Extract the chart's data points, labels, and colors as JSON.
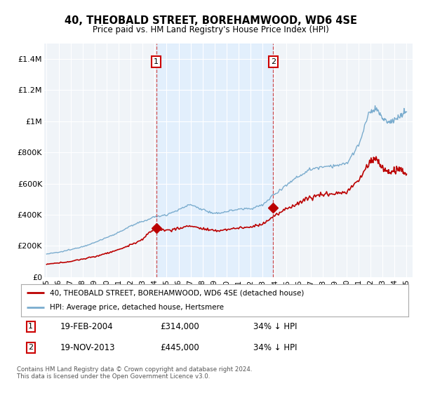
{
  "title": "40, THEOBALD STREET, BOREHAMWOOD, WD6 4SE",
  "subtitle": "Price paid vs. HM Land Registry's House Price Index (HPI)",
  "xlim_start": 1994.8,
  "xlim_end": 2025.5,
  "ylim_bottom": 0,
  "ylim_top": 1500000,
  "yticks": [
    0,
    200000,
    400000,
    600000,
    800000,
    1000000,
    1200000,
    1400000
  ],
  "ytick_labels": [
    "£0",
    "£200K",
    "£400K",
    "£600K",
    "£800K",
    "£1M",
    "£1.2M",
    "£1.4M"
  ],
  "sale1_date_num": 2004.13,
  "sale1_price": 314000,
  "sale1_label": "1",
  "sale2_date_num": 2013.89,
  "sale2_price": 445000,
  "sale2_label": "2",
  "red_line_color": "#bb0000",
  "blue_line_color": "#7aacce",
  "vline_color": "#cc3333",
  "annotation_box_color": "#cc0000",
  "shade_color": "#ddeeff",
  "legend_entry1": "40, THEOBALD STREET, BOREHAMWOOD, WD6 4SE (detached house)",
  "legend_entry2": "HPI: Average price, detached house, Hertsmere",
  "table_row1": [
    "1",
    "19-FEB-2004",
    "£314,000",
    "34% ↓ HPI"
  ],
  "table_row2": [
    "2",
    "19-NOV-2013",
    "£445,000",
    "34% ↓ HPI"
  ],
  "footnote": "Contains HM Land Registry data © Crown copyright and database right 2024.\nThis data is licensed under the Open Government Licence v3.0.",
  "bg_color": "#ffffff",
  "plot_bg_color": "#f0f4f8"
}
